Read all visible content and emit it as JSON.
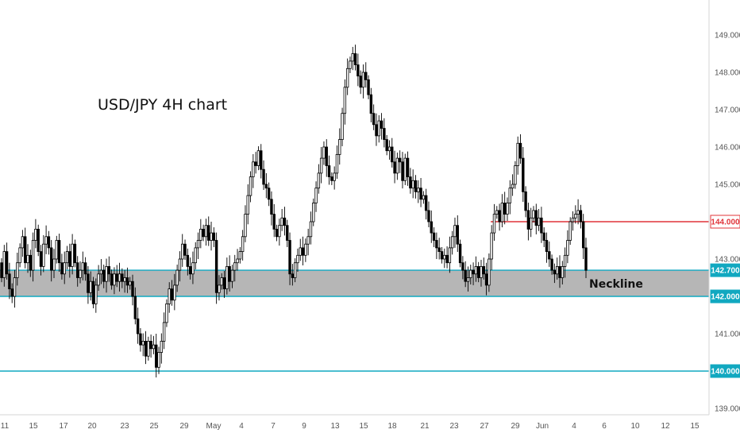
{
  "chart_data": {
    "type": "candlestick",
    "title": "USD/JPY 4H chart",
    "y_axis": {
      "position": "right",
      "ylim": [
        138.85,
        149.8
      ],
      "ticks": [
        "139.000",
        "140.000",
        "141.000",
        "142.000",
        "143.000",
        "144.000",
        "145.000",
        "146.000",
        "147.000",
        "148.000",
        "149.000"
      ]
    },
    "x_axis": {
      "ticks": [
        "11",
        "15",
        "17",
        "20",
        "23",
        "25",
        "29",
        "May",
        "4",
        "7",
        "9",
        "13",
        "15",
        "18",
        "21",
        "23",
        "27",
        "29",
        "Jun",
        "4",
        "6",
        "10",
        "12",
        "15"
      ]
    },
    "closes": [
      142.5,
      143.2,
      142.6,
      142.2,
      142.0,
      142.5,
      142.9,
      143.3,
      143.6,
      142.9,
      143.1,
      142.7,
      143.5,
      143.8,
      143.2,
      142.8,
      143.4,
      143.6,
      143.3,
      142.7,
      143.0,
      143.5,
      142.9,
      142.6,
      142.9,
      143.2,
      142.8,
      143.4,
      142.9,
      142.5,
      142.7,
      142.9,
      142.6,
      142.1,
      142.4,
      141.8,
      142.3,
      142.6,
      142.7,
      142.4,
      142.8,
      142.6,
      142.3,
      142.6,
      142.4,
      142.6,
      142.4,
      142.5,
      142.3,
      142.4,
      142.0,
      141.4,
      141.0,
      140.7,
      140.8,
      140.4,
      140.8,
      140.6,
      140.7,
      140.1,
      140.5,
      140.8,
      141.3,
      141.8,
      142.2,
      141.9,
      142.3,
      142.7,
      143.0,
      143.4,
      143.1,
      142.8,
      142.6,
      142.9,
      143.3,
      143.5,
      143.8,
      143.6,
      143.9,
      143.5,
      143.7,
      143.5,
      142.1,
      142.3,
      142.5,
      142.2,
      142.8,
      142.4,
      142.7,
      142.9,
      143.0,
      143.2,
      143.6,
      144.2,
      144.7,
      145.2,
      145.6,
      145.5,
      145.9,
      145.4,
      145.0,
      144.9,
      144.6,
      144.2,
      143.8,
      143.6,
      143.9,
      144.1,
      143.9,
      143.5,
      142.6,
      142.5,
      142.9,
      143.1,
      143.3,
      143.1,
      143.4,
      143.6,
      144.0,
      144.5,
      144.9,
      145.3,
      145.7,
      146.0,
      145.5,
      145.2,
      145.1,
      145.3,
      145.8,
      146.2,
      146.9,
      147.6,
      148.1,
      148.3,
      148.5,
      148.2,
      147.9,
      147.6,
      148.0,
      147.8,
      147.4,
      146.9,
      146.6,
      146.3,
      146.7,
      146.5,
      146.2,
      145.9,
      146.0,
      145.6,
      145.3,
      145.7,
      145.6,
      145.1,
      145.7,
      145.2,
      144.9,
      145.1,
      144.8,
      144.9,
      144.6,
      144.7,
      144.3,
      144.0,
      143.7,
      143.5,
      143.3,
      143.2,
      143.0,
      143.1,
      142.9,
      143.3,
      143.6,
      143.9,
      143.4,
      142.9,
      142.7,
      142.4,
      142.5,
      142.7,
      142.6,
      142.8,
      142.5,
      142.8,
      142.6,
      142.3,
      143.0,
      143.7,
      144.2,
      144.3,
      144.0,
      144.5,
      144.2,
      144.5,
      144.9,
      145.0,
      145.5,
      146.1,
      145.7,
      144.8,
      144.3,
      143.8,
      144.1,
      144.3,
      143.9,
      144.1,
      143.7,
      143.5,
      143.2,
      143.0,
      142.7,
      142.6,
      142.8,
      142.5,
      142.8,
      143.1,
      143.5,
      144.0,
      144.1,
      144.2,
      144.3,
      144.0,
      143.3,
      142.7
    ],
    "price_lines": [
      {
        "label": "144.000",
        "value": 144.0,
        "color": "#e0343a"
      },
      {
        "label": "142.700",
        "value": 142.7,
        "color": "#11a8c0"
      },
      {
        "label": "142.000",
        "value": 142.0,
        "color": "#11a8c0"
      },
      {
        "label": "140.000",
        "value": 140.0,
        "color": "#11a8c0"
      }
    ],
    "zone": {
      "from": 142.0,
      "to": 142.7,
      "color": "#b6b6b6"
    },
    "annotations": [
      {
        "text": "Neckline"
      }
    ]
  },
  "colors": {
    "candle": "#000000",
    "axis_text": "#555555",
    "axis_line": "#d6d6d6",
    "background": "#ffffff"
  }
}
